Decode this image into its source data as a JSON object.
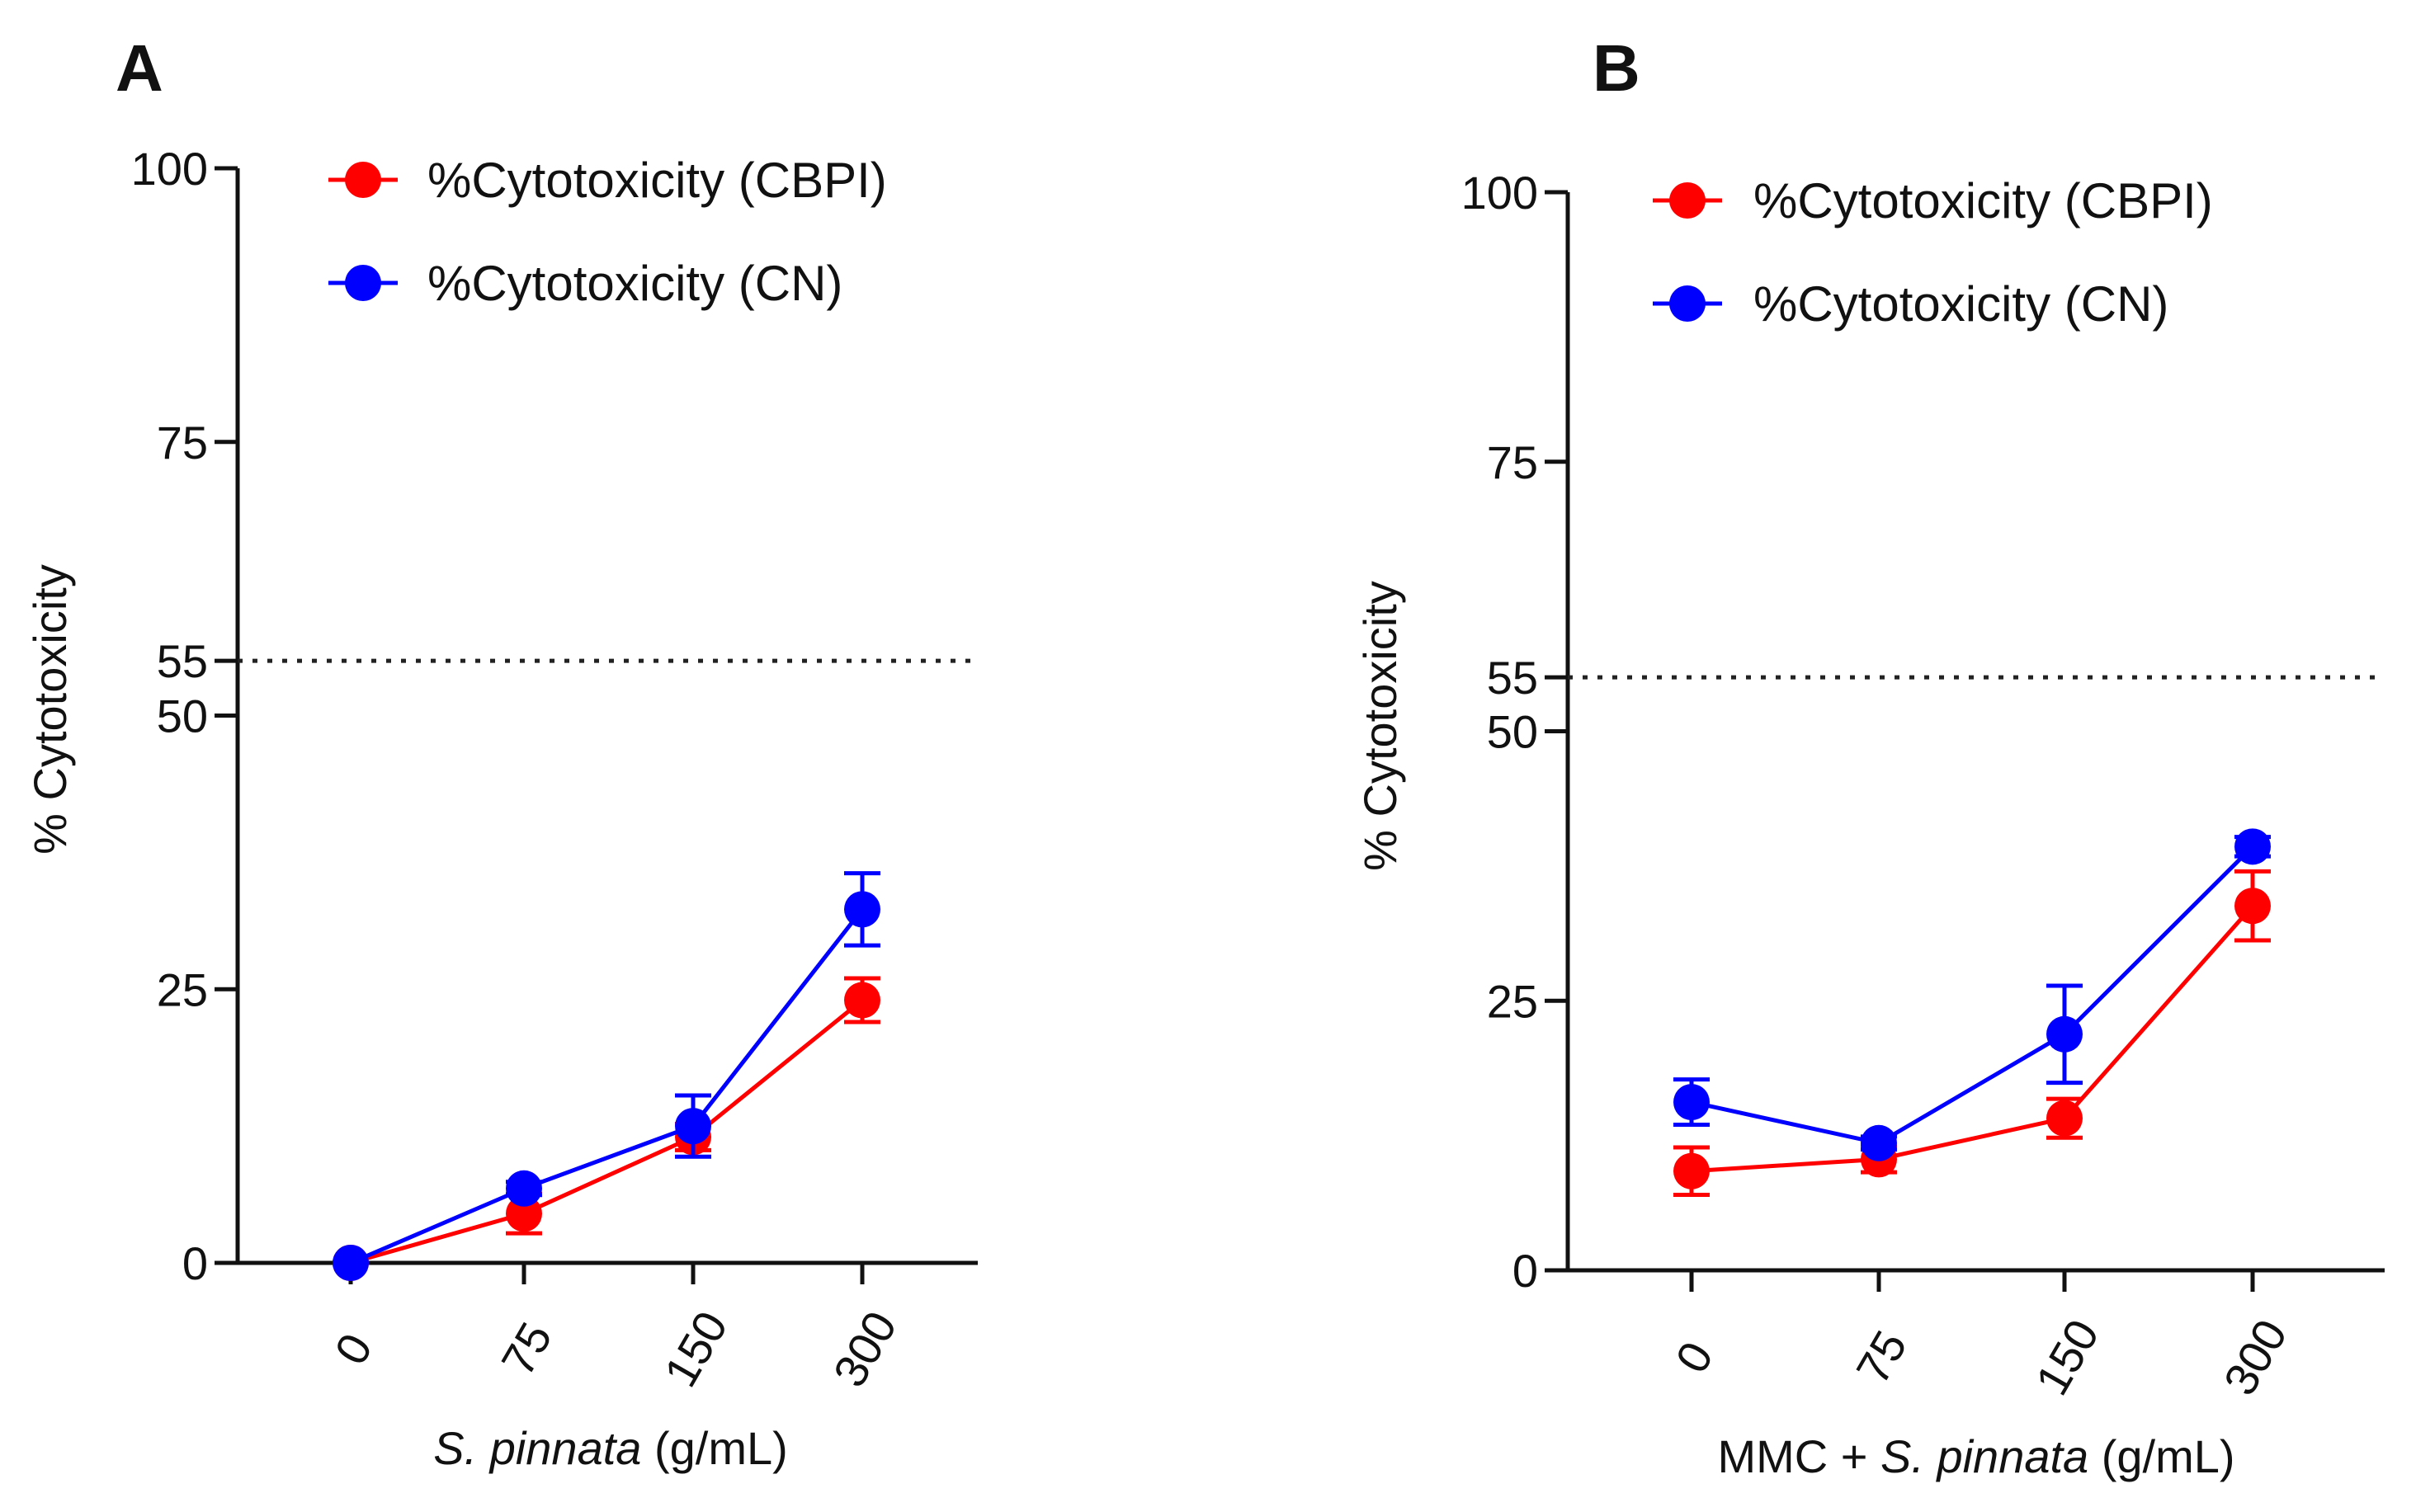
{
  "chart_data": [
    {
      "panel": "A",
      "type": "line",
      "categories": [
        "0",
        "75",
        "150",
        "300"
      ],
      "xlabel_italic": "S. pinnata",
      "xlabel_suffix": "(g/mL)",
      "ylabel": "% Cytotoxicity",
      "ylim": [
        0,
        100
      ],
      "yticks": [
        0,
        25,
        50,
        55,
        75,
        100
      ],
      "reference_line": 55,
      "series": [
        {
          "name": "%Cytotoxicity (CBPI)",
          "color": "#ff0000",
          "values": [
            0,
            4.5,
            11.5,
            24
          ],
          "errors": [
            0,
            1.8,
            1.2,
            2
          ]
        },
        {
          "name": "%Cytotoxicity (CN)",
          "color": "#0000ff",
          "values": [
            0,
            6.8,
            12.5,
            32.3
          ],
          "errors": [
            0,
            0.6,
            2.8,
            3.3
          ]
        }
      ]
    },
    {
      "panel": "B",
      "type": "line",
      "categories": [
        "0",
        "75",
        "150",
        "300"
      ],
      "xlabel_prefix": "MMC + ",
      "xlabel_italic": "S. pinnata",
      "xlabel_suffix": "(g/mL)",
      "ylabel": "% Cytotoxicity",
      "ylim": [
        0,
        100
      ],
      "yticks": [
        0,
        25,
        50,
        55,
        75,
        100
      ],
      "reference_line": 55,
      "series": [
        {
          "name": "%Cytotoxicity (CBPI)",
          "color": "#ff0000",
          "values": [
            9.2,
            10.3,
            14.1,
            33.8
          ],
          "errors": [
            2.2,
            1.2,
            1.8,
            3.2
          ]
        },
        {
          "name": "%Cytotoxicity (CN)",
          "color": "#0000ff",
          "values": [
            15.6,
            11.8,
            21.9,
            39.3
          ],
          "errors": [
            2.1,
            0.6,
            4.5,
            0.9
          ]
        }
      ]
    }
  ]
}
